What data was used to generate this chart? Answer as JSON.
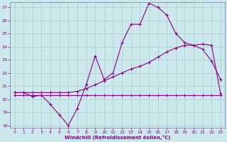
{
  "xlabel": "Windchill (Refroidissement éolien,°C)",
  "background_color": "#cce8ed",
  "grid_color": "#aacccc",
  "line_color": "#880088",
  "xlim": [
    -0.5,
    23.5
  ],
  "ylim": [
    17.8,
    27.4
  ],
  "yticks": [
    18,
    19,
    20,
    21,
    22,
    23,
    24,
    25,
    26,
    27
  ],
  "xticks": [
    0,
    1,
    2,
    3,
    4,
    5,
    6,
    7,
    8,
    9,
    10,
    11,
    12,
    13,
    14,
    15,
    16,
    17,
    18,
    19,
    20,
    21,
    22,
    23
  ],
  "line1_x": [
    0,
    1,
    2,
    3,
    4,
    5,
    6,
    7,
    8,
    9,
    10,
    11,
    12,
    13,
    14,
    15,
    16,
    17,
    18,
    19,
    20,
    21,
    22,
    23
  ],
  "line1_y": [
    20.5,
    20.5,
    20.2,
    20.3,
    19.6,
    18.8,
    18.0,
    19.3,
    21.1,
    23.3,
    21.5,
    22.0,
    24.3,
    25.7,
    25.7,
    27.3,
    27.0,
    26.4,
    25.0,
    24.3,
    24.1,
    23.8,
    22.9,
    21.5
  ],
  "line2_x": [
    0,
    1,
    2,
    3,
    4,
    5,
    6,
    7,
    8,
    9,
    10,
    11,
    12,
    13,
    14,
    15,
    16,
    17,
    18,
    19,
    20,
    21,
    22,
    23
  ],
  "line2_y": [
    20.3,
    20.3,
    20.3,
    20.3,
    20.3,
    20.3,
    20.3,
    20.3,
    20.3,
    20.3,
    20.3,
    20.3,
    20.3,
    20.3,
    20.3,
    20.3,
    20.3,
    20.3,
    20.3,
    20.3,
    20.3,
    20.3,
    20.3,
    20.3
  ],
  "line3_x": [
    0,
    1,
    2,
    3,
    4,
    5,
    6,
    7,
    8,
    9,
    10,
    11,
    12,
    13,
    14,
    15,
    16,
    17,
    18,
    19,
    20,
    21,
    22,
    23
  ],
  "line3_y": [
    20.5,
    20.5,
    20.5,
    20.5,
    20.5,
    20.5,
    20.5,
    20.6,
    20.8,
    21.1,
    21.4,
    21.7,
    22.0,
    22.3,
    22.5,
    22.8,
    23.2,
    23.6,
    23.9,
    24.1,
    24.1,
    24.2,
    24.1,
    20.4
  ]
}
